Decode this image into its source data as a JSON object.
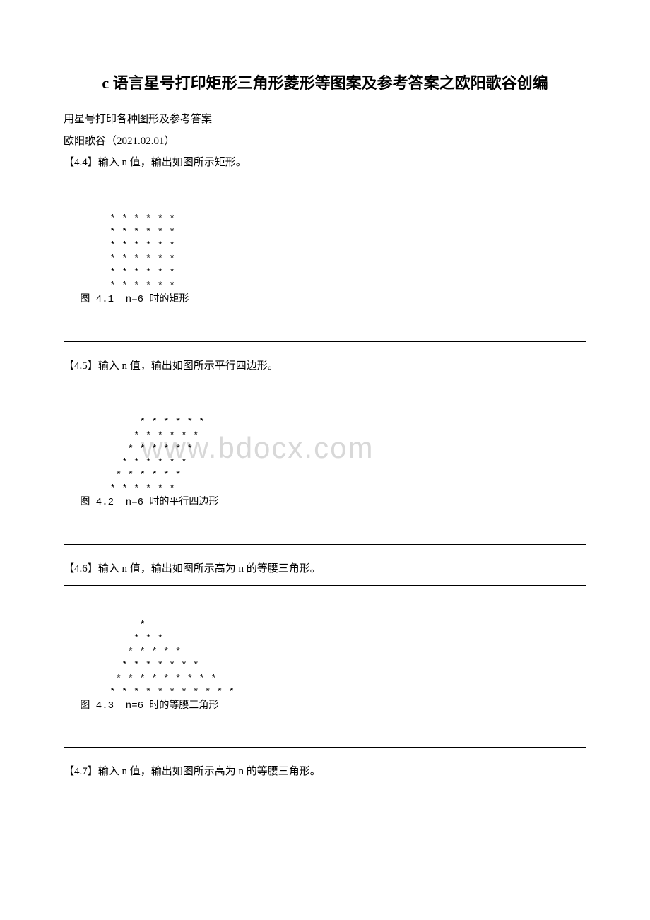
{
  "title": "c 语言星号打印矩形三角形菱形等图案及参考答案之欧阳歌谷创编",
  "intro": "用星号打印各种图形及参考答案",
  "author": "欧阳歌谷（2021.02.01）",
  "watermark": "www.bdocx.com",
  "exercises": [
    {
      "label": "【4.4】输入 n 值，输出如图所示矩形。",
      "code": "      * * * * * *\n      * * * * * *\n      * * * * * *\n      * * * * * *\n      * * * * * *\n      * * * * * *\n 图 4.1  n=6 时的矩形"
    },
    {
      "label": "【4.5】输入 n 值，输出如图所示平行四边形。",
      "code": "           * * * * * *\n          * * * * * *\n         * * * * * *\n        * * * * * *\n       * * * * * *\n      * * * * * *\n 图 4.2  n=6 时的平行四边形"
    },
    {
      "label": "【4.6】输入 n 值，输出如图所示高为 n 的等腰三角形。",
      "code": "           *\n          * * *\n         * * * * *\n        * * * * * * *\n       * * * * * * * * *\n      * * * * * * * * * * *\n 图 4.3  n=6 时的等腰三角形"
    },
    {
      "label": "【4.7】输入 n 值，输出如图所示高为 n 的等腰三角形。",
      "code": null
    }
  ]
}
